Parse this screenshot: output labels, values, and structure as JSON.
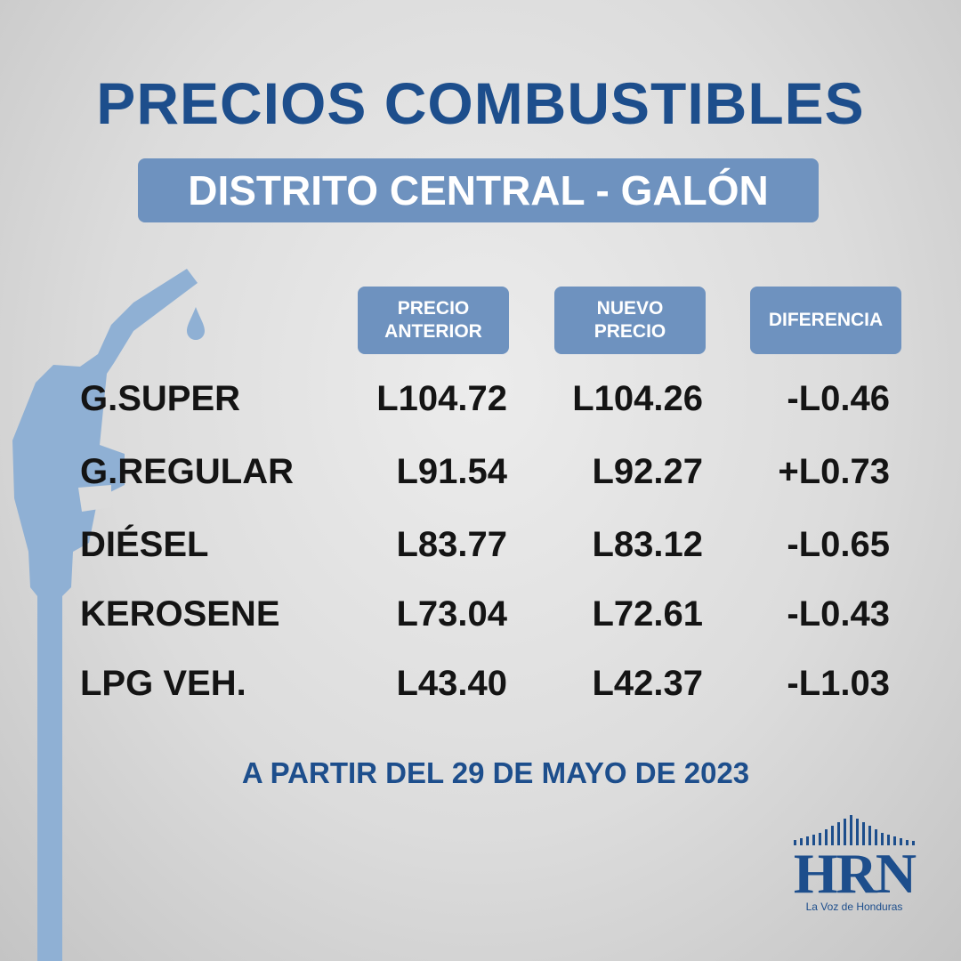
{
  "header": {
    "title": "PRECIOS COMBUSTIBLES",
    "subtitle": "DISTRITO CENTRAL - GALÓN"
  },
  "table": {
    "columns": [
      [
        "PRECIO",
        "ANTERIOR"
      ],
      [
        "NUEVO",
        "PRECIO"
      ],
      [
        "DIFERENCIA"
      ]
    ],
    "rows": [
      [
        "G.SUPER",
        "L104.72",
        "L104.26",
        "-L0.46"
      ],
      [
        "G.REGULAR",
        "L91.54",
        "L92.27",
        "+L0.73"
      ],
      [
        "DIÉSEL",
        "L83.77",
        "L83.12",
        "-L0.65"
      ],
      [
        "KEROSENE",
        "L73.04",
        "L72.61",
        "-L0.43"
      ],
      [
        "LPG VEH.",
        "L43.40",
        "L42.37",
        "-L1.03"
      ]
    ]
  },
  "footer": "A PARTIR DEL 29 DE MAYO DE 2023",
  "logo": {
    "name": "HRN",
    "tagline": "La Voz de Honduras"
  }
}
